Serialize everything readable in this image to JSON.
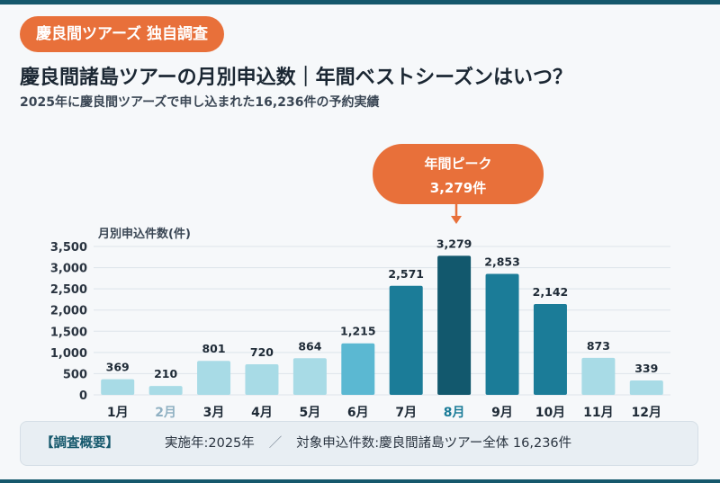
{
  "badge": "慶良間ツアーズ 独自調査",
  "title": "慶良間諸島ツアーの月別申込数｜年間ベストシーズンはいつ？",
  "subtitle": "2025年に慶良間ツアーズで申し込まれた16,236件の予約実績",
  "callout": {
    "label": "年間ピーク",
    "value": "3,279件"
  },
  "summary": {
    "heading": "【調査概要】",
    "year": "実施年:2025年",
    "separator": "／",
    "target": "対象申込件数:慶良間諸島ツアー全体 16,236件"
  },
  "colors": {
    "accent": "#e8703a",
    "low": "#a8dbe6",
    "mid": "#5bb8d2",
    "high": "#1b7c98",
    "peak": "#12586d",
    "category_highlight": "#1b7c98",
    "category_muted": "#8fb0c2"
  },
  "chart_data": {
    "type": "bar",
    "ylabel": "月別申込件数(件)",
    "ylim": [
      0,
      3500
    ],
    "yticks": [
      0,
      500,
      1000,
      1500,
      2000,
      2500,
      3000,
      3500
    ],
    "ytick_labels": [
      "0",
      "500",
      "1,000",
      "1,500",
      "2,000",
      "2,500",
      "3,000",
      "3,500"
    ],
    "grid": true,
    "categories": [
      "1月",
      "2月",
      "3月",
      "4月",
      "5月",
      "6月",
      "7月",
      "8月",
      "9月",
      "10月",
      "11月",
      "12月"
    ],
    "values": [
      369,
      210,
      801,
      720,
      864,
      1215,
      2571,
      3279,
      2853,
      2142,
      873,
      339
    ],
    "value_labels": [
      "369",
      "210",
      "801",
      "720",
      "864",
      "1,215",
      "2,571",
      "3,279",
      "2,853",
      "2,142",
      "873",
      "339"
    ],
    "bar_color_levels": [
      "low",
      "low",
      "low",
      "low",
      "low",
      "mid",
      "high",
      "peak",
      "high",
      "high",
      "low",
      "low"
    ],
    "category_color_levels": [
      "normal",
      "muted",
      "normal",
      "normal",
      "normal",
      "normal",
      "normal",
      "highlight",
      "normal",
      "normal",
      "normal",
      "normal"
    ]
  }
}
